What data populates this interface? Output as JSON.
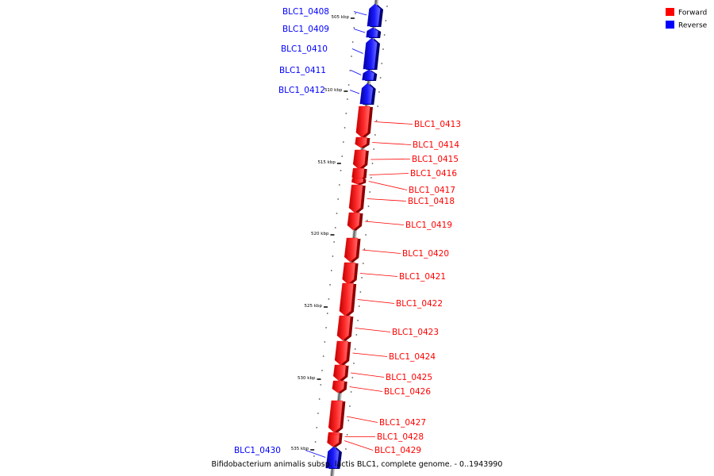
{
  "legend": [
    {
      "label": "Forward",
      "color": "#ff0000"
    },
    {
      "label": "Reverse",
      "color": "#0000ff"
    }
  ],
  "caption": "Bifidobacterium animalis subsp. lactis BLC1, complete genome. - 0..1943990",
  "colors": {
    "forward": "#ff0000",
    "reverse": "#0000ff",
    "backbone": "#888888"
  },
  "ticks": [
    {
      "label": "505 kbp"
    },
    {
      "label": "510 kbp"
    },
    {
      "label": "515 kbp"
    },
    {
      "label": "520 kbp"
    },
    {
      "label": "525 kbp"
    },
    {
      "label": "530 kbp"
    },
    {
      "label": "535 kbp"
    }
  ],
  "genes": [
    {
      "name": "BLC1_0408",
      "strand": "reverse"
    },
    {
      "name": "BLC1_0409",
      "strand": "reverse"
    },
    {
      "name": "BLC1_0410",
      "strand": "reverse"
    },
    {
      "name": "BLC1_0411",
      "strand": "reverse"
    },
    {
      "name": "BLC1_0412",
      "strand": "reverse"
    },
    {
      "name": "BLC1_0413",
      "strand": "forward"
    },
    {
      "name": "BLC1_0414",
      "strand": "forward"
    },
    {
      "name": "BLC1_0415",
      "strand": "forward"
    },
    {
      "name": "BLC1_0416",
      "strand": "forward"
    },
    {
      "name": "BLC1_0417",
      "strand": "forward"
    },
    {
      "name": "BLC1_0418",
      "strand": "forward"
    },
    {
      "name": "BLC1_0419",
      "strand": "forward"
    },
    {
      "name": "BLC1_0420",
      "strand": "forward"
    },
    {
      "name": "BLC1_0421",
      "strand": "forward"
    },
    {
      "name": "BLC1_0422",
      "strand": "forward"
    },
    {
      "name": "BLC1_0423",
      "strand": "forward"
    },
    {
      "name": "BLC1_0424",
      "strand": "forward"
    },
    {
      "name": "BLC1_0425",
      "strand": "forward"
    },
    {
      "name": "BLC1_0426",
      "strand": "forward"
    },
    {
      "name": "BLC1_0427",
      "strand": "forward"
    },
    {
      "name": "BLC1_0428",
      "strand": "forward"
    },
    {
      "name": "BLC1_0429",
      "strand": "forward"
    },
    {
      "name": "BLC1_0430",
      "strand": "reverse"
    }
  ]
}
